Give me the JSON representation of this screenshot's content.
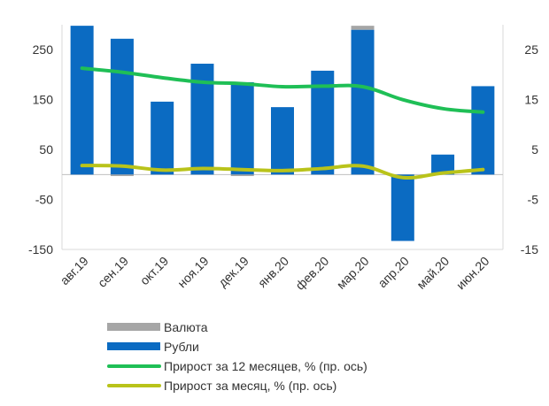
{
  "chart_data": {
    "type": "bar",
    "categories": [
      "авг.19",
      "сен.19",
      "окт.19",
      "ноя.19",
      "дек.19",
      "янв.20",
      "фев.20",
      "мар.20",
      "апр.20",
      "май.20",
      "июн.20"
    ],
    "series": [
      {
        "name": "Валюта",
        "kind": "bar",
        "axis": "left",
        "color": "#a6a6a6",
        "values": [
          0,
          -3,
          0,
          0,
          -3,
          0,
          0,
          8,
          0,
          0,
          0
        ]
      },
      {
        "name": "Рубли",
        "kind": "bar",
        "axis": "left",
        "color": "#0b6bc2",
        "values": [
          298,
          272,
          146,
          222,
          185,
          135,
          208,
          290,
          -133,
          40,
          177
        ]
      },
      {
        "name": "Прирост за 12 месяцев, % (пр. ось)",
        "kind": "line",
        "axis": "right",
        "color": "#1fbf56",
        "values": [
          21.3,
          20.5,
          19.4,
          18.5,
          18.2,
          17.6,
          17.7,
          17.6,
          15.0,
          13.2,
          12.5
        ]
      },
      {
        "name": "Прирост за месяц, % (пр. ось)",
        "kind": "line",
        "axis": "right",
        "color": "#b9c31a",
        "values": [
          1.8,
          1.7,
          0.9,
          1.2,
          1.0,
          0.8,
          1.2,
          1.7,
          -0.6,
          0.3,
          1.0
        ]
      }
    ],
    "y_left": {
      "ylim": [
        -150,
        300
      ],
      "ticks": [
        -150,
        -50,
        50,
        150,
        250
      ]
    },
    "y_right": {
      "ylim": [
        -15,
        30
      ],
      "ticks": [
        -15,
        -5,
        5,
        15,
        25
      ]
    },
    "grid": false,
    "legend_position": "bottom"
  }
}
